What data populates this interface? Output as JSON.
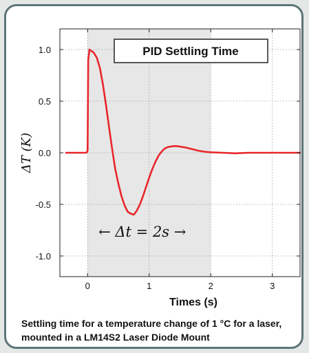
{
  "caption": "Settling time for a temperature change of 1 °C for a laser, mounted in a LM14S2 Laser Diode Mount",
  "colors": {
    "frame": "#5d7478",
    "background": "#e3e7e6",
    "series": "#e8262b",
    "highlight_band": "#e7e7e7"
  },
  "chart_data": {
    "type": "line",
    "title": "PID Settling Time",
    "xlabel": "Times (s)",
    "ylabel": "ΔT (K)",
    "xlim": [
      -0.45,
      3.45
    ],
    "ylim": [
      -1.2,
      1.2
    ],
    "xticks": [
      0,
      1,
      2,
      3
    ],
    "xtick_labels": [
      "0",
      "1",
      "2",
      "3"
    ],
    "yticks": [
      1.0,
      0.5,
      0.0,
      -0.5,
      -1.0
    ],
    "ytick_labels": [
      "1.0",
      "0.5",
      "0.0",
      "-0.5",
      "-1.0"
    ],
    "grid": true,
    "legend": "top-right box",
    "shaded_interval": [
      0,
      2
    ],
    "annotation": "← Δt = 2s →",
    "series": [
      {
        "x": [
          -0.35,
          -0.3,
          -0.2,
          -0.1,
          -0.02,
          0.0,
          0.01,
          0.03,
          0.05,
          0.08,
          0.1,
          0.15,
          0.2,
          0.25,
          0.3,
          0.35,
          0.4,
          0.45,
          0.5,
          0.55,
          0.6,
          0.65,
          0.7,
          0.75,
          0.8,
          0.85,
          0.9,
          0.95,
          1.0,
          1.05,
          1.1,
          1.15,
          1.2,
          1.25,
          1.3,
          1.35,
          1.4,
          1.45,
          1.5,
          1.55,
          1.6,
          1.7,
          1.8,
          1.9,
          2.0,
          2.2,
          2.4,
          2.6,
          2.8,
          3.0,
          3.2,
          3.45
        ],
        "y": [
          0.0,
          0.0,
          0.0,
          0.0,
          0.0,
          0.02,
          0.9,
          1.0,
          0.99,
          0.98,
          0.97,
          0.92,
          0.82,
          0.66,
          0.46,
          0.24,
          0.03,
          -0.16,
          -0.3,
          -0.42,
          -0.51,
          -0.57,
          -0.59,
          -0.6,
          -0.56,
          -0.5,
          -0.42,
          -0.33,
          -0.24,
          -0.16,
          -0.09,
          -0.03,
          0.01,
          0.04,
          0.055,
          0.06,
          0.065,
          0.065,
          0.06,
          0.055,
          0.05,
          0.035,
          0.02,
          0.01,
          0.005,
          0.0,
          -0.005,
          0.0,
          0.0,
          0.0,
          0.0,
          0.0
        ]
      }
    ]
  }
}
